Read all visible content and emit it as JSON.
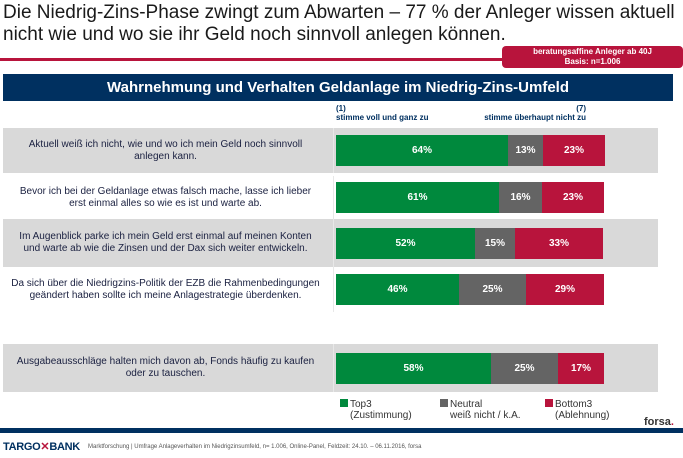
{
  "header": {
    "title_line1": "Die Niedrig-Zins-Phase zwingt zum Abwarten – 77 % der Anleger wissen aktuell",
    "title_line2": "nicht wie und wo sie ihr Geld noch sinnvoll anlegen können.",
    "badge_line1": "beratungsaffine Anleger ab 40J",
    "badge_line2": "Basis: n=1.006",
    "banner": "Wahrnehmung und Verhalten Geldanlage im Niedrig-Zins-Umfeld"
  },
  "scale": {
    "left_num": "(1)",
    "left_label": "stimme voll und ganz zu",
    "right_num": "(7)",
    "right_label": "stimme überhaupt nicht zu"
  },
  "chart_data": {
    "type": "bar",
    "orientation": "horizontal-stacked-100",
    "title": "Wahrnehmung und Verhalten Geldanlage im Niedrig-Zins-Umfeld",
    "categories": [
      "Aktuell weiß ich nicht, wie und wo ich mein Geld noch sinnvoll anlegen kann.",
      "Bevor ich bei der Geldanlage etwas falsch mache, lasse ich lieber erst einmal alles so wie es ist und warte ab.",
      "Im Augenblick parke ich mein Geld erst einmal auf meinen Konten und warte ab wie die Zinsen und der Dax sich weiter entwickeln.",
      "Da sich über die Niedrigzins-Politik der EZB die Rahmenbedingungen geändert haben sollte ich meine Anlagestrategie überdenken.",
      "Ausgabeausschläge halten mich davon ab, Fonds häufig zu kaufen oder zu tauschen."
    ],
    "series": [
      {
        "name": "Top3 (Zustimmung)",
        "color": "#00893d",
        "values": [
          64,
          61,
          52,
          46,
          58
        ]
      },
      {
        "name": "Neutral weiß nicht / k.A.",
        "color": "#646464",
        "values": [
          13,
          16,
          15,
          25,
          25
        ]
      },
      {
        "name": "Bottom3 (Ablehnung)",
        "color": "#b8143c",
        "values": [
          23,
          23,
          33,
          29,
          17
        ]
      }
    ],
    "value_suffix": "%",
    "xlim": [
      0,
      100
    ],
    "legend": "bottom"
  },
  "legend": {
    "items": [
      {
        "line1": "Top3",
        "line2": "(Zustimmung)",
        "color": "#00893d"
      },
      {
        "line1": "Neutral",
        "line2": "weiß nicht / k.A.",
        "color": "#646464"
      },
      {
        "line1": "Bottom3",
        "line2": "(Ablehnung)",
        "color": "#b8143c"
      }
    ]
  },
  "footer": {
    "forsa": "forsa",
    "forsa_dot": ".",
    "logo_left": "TARGO",
    "logo_mark": "✕",
    "logo_right": "BANK",
    "note": "Marktforschung | Umfrage Anlageverhalten im Niedrigzinsumfeld, n= 1.006, Online-Panel, Feldzeit: 24.10. – 06.11.2016, forsa"
  }
}
